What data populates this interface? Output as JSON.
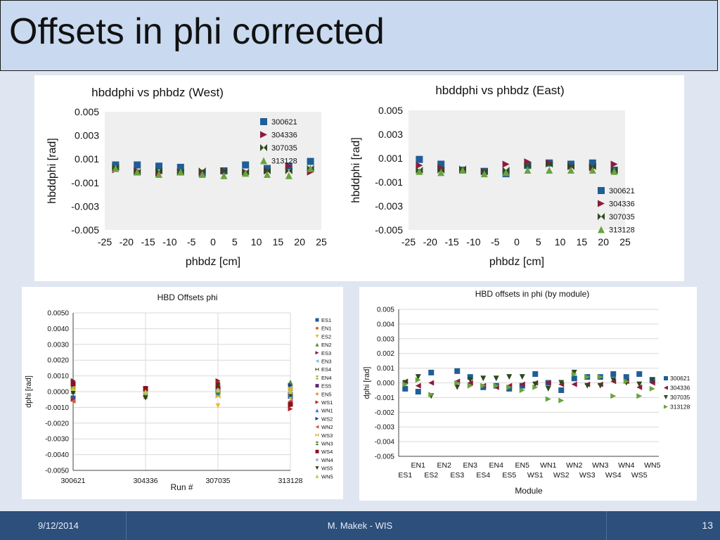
{
  "slide": {
    "title": "Offsets in phi corrected",
    "footer_date": "9/12/2014",
    "footer_author": "M. Makek - WIS",
    "page_number": "13"
  },
  "colors": {
    "300621": "#1f5e96",
    "304336": "#8e1a3c",
    "307035": "#2d4a1e",
    "313128": "#6aa33f"
  },
  "chart_data": [
    {
      "id": "west",
      "type": "scatter",
      "title": "hbddphi vs phbdz (West)",
      "xlabel": "phbdz [cm]",
      "ylabel": "hbddphi [rad]",
      "xlim": [
        -25,
        25
      ],
      "ylim": [
        -0.005,
        0.005
      ],
      "xticks": [
        "-25",
        "-20",
        "-15",
        "-10",
        "-5",
        "0",
        "5",
        "10",
        "15",
        "20",
        "25"
      ],
      "yticks": [
        "0.005",
        "0.003",
        "0.001",
        "-0.001",
        "-0.003",
        "-0.005"
      ],
      "legend_position": "top-right",
      "x": [
        -22.5,
        -17.5,
        -12.5,
        -7.5,
        -2.5,
        2.5,
        7.5,
        12.5,
        17.5,
        22.5
      ],
      "series": [
        {
          "name": "300621",
          "marker": "square",
          "values": [
            0.0005,
            0.0005,
            0.0004,
            0.0003,
            -0.0002,
            0.0,
            0.0005,
            0.0002,
            0.0004,
            0.0008
          ]
        },
        {
          "name": "304336",
          "marker": "triangle-right",
          "values": [
            0.0001,
            0.0,
            -0.0002,
            -0.0001,
            -0.0001,
            0.0,
            -0.0001,
            0.0,
            0.0004,
            -0.0001
          ]
        },
        {
          "name": "307035",
          "marker": "bowtie",
          "values": [
            0.0003,
            -0.0001,
            0.0,
            -0.0001,
            0.0,
            0.0,
            -0.0001,
            0.0,
            0.0,
            0.0002
          ]
        },
        {
          "name": "313128",
          "marker": "triangle-up",
          "values": [
            0.0002,
            -0.0001,
            -0.0003,
            -0.0001,
            -0.0003,
            -0.0004,
            -0.0002,
            -0.0003,
            -0.0004,
            0.0002
          ]
        }
      ]
    },
    {
      "id": "east",
      "type": "scatter",
      "title": "hbddphi vs phbdz (East)",
      "xlabel": "phbdz [cm]",
      "ylabel": "hbddphi [rad]",
      "xlim": [
        -25,
        25
      ],
      "ylim": [
        -0.005,
        0.005
      ],
      "xticks": [
        "-25",
        "-20",
        "-15",
        "-10",
        "-5",
        "0",
        "5",
        "10",
        "15",
        "20",
        "25"
      ],
      "yticks": [
        "0.005",
        "0.003",
        "0.001",
        "-0.001",
        "-0.003",
        "-0.005"
      ],
      "legend_position": "bottom-right",
      "x": [
        -22.5,
        -17.5,
        -12.5,
        -7.5,
        -2.5,
        2.5,
        7.5,
        12.5,
        17.5,
        22.5
      ],
      "series": [
        {
          "name": "300621",
          "marker": "square",
          "values": [
            0.0009,
            0.0005,
            0.0,
            -0.0001,
            -0.0003,
            0.0004,
            0.0006,
            0.0005,
            0.0006,
            0.0
          ]
        },
        {
          "name": "304336",
          "marker": "triangle-right",
          "values": [
            0.0004,
            0.0002,
            0.0,
            -0.0001,
            0.0005,
            0.0007,
            0.0006,
            0.0003,
            0.0002,
            0.0005
          ]
        },
        {
          "name": "307035",
          "marker": "bowtie",
          "values": [
            0.0,
            0.0,
            0.0001,
            -0.0001,
            0.0,
            0.0004,
            0.0005,
            0.0003,
            0.0003,
            0.0
          ]
        },
        {
          "name": "313128",
          "marker": "triangle-up",
          "values": [
            -0.0001,
            -0.0002,
            0.0,
            -0.0003,
            -0.0002,
            0.0,
            0.0,
            0.0,
            0.0,
            -0.0001
          ]
        }
      ]
    },
    {
      "id": "runs",
      "type": "scatter",
      "title": "HBD Offsets phi",
      "xlabel": "Run #",
      "ylabel": "dphi [rad]",
      "ylim": [
        -0.005,
        0.005
      ],
      "grid": true,
      "yticks": [
        "0.0050",
        "0.0040",
        "0.0030",
        "0.0020",
        "0.0010",
        "0.0000",
        "-0.0010",
        "-0.0020",
        "-0.0030",
        "-0.0040",
        "-0.0050"
      ],
      "categories": [
        "300621",
        "304336",
        "307035",
        "313128"
      ],
      "legend_position": "right",
      "series": [
        {
          "name": "ES1",
          "color": "#1f5e96",
          "marker": "square",
          "values": [
            -0.0004,
            0.0001,
            0.0003,
            -0.0003
          ]
        },
        {
          "name": "EN1",
          "color": "#c8641e",
          "marker": "diamond",
          "values": [
            0.0006,
            0.0001,
            0.0005,
            0.0004
          ]
        },
        {
          "name": "ES2",
          "color": "#e6c229",
          "marker": "triangle-down",
          "values": [
            0.0001,
            -0.0001,
            -0.0009,
            -0.0004
          ]
        },
        {
          "name": "EN2",
          "color": "#4c8c2b",
          "marker": "triangle-up",
          "values": [
            0.0001,
            -0.0002,
            0.0001,
            0.0006
          ]
        },
        {
          "name": "ES3",
          "color": "#7a1f3d",
          "marker": "triangle-right",
          "values": [
            0.0007,
            0.0001,
            0.0007,
            -0.0009
          ]
        },
        {
          "name": "EN3",
          "color": "#8eb7de",
          "marker": "triangle-left",
          "values": [
            0.0003,
            0.0,
            0.0002,
            0.0003
          ]
        },
        {
          "name": "ES4",
          "color": "#4a5b2c",
          "marker": "bowtie",
          "values": [
            0.0005,
            0.0,
            0.0,
            0.0002
          ]
        },
        {
          "name": "EN4",
          "color": "#a7a13a",
          "marker": "hourglass",
          "values": [
            0.0002,
            -0.0002,
            0.0004,
            0.0
          ]
        },
        {
          "name": "ES5",
          "color": "#5a2a6e",
          "marker": "square",
          "values": [
            0.0004,
            0.0,
            0.0003,
            -0.0002
          ]
        },
        {
          "name": "EN5",
          "color": "#e0a040",
          "marker": "diamond",
          "values": [
            0.0003,
            -0.0001,
            0.0002,
            0.0001
          ]
        },
        {
          "name": "WS1",
          "color": "#b22020",
          "marker": "triangle-right",
          "values": [
            -0.0005,
            -0.0002,
            0.0006,
            -0.0011
          ]
        },
        {
          "name": "WN1",
          "color": "#2a7fd4",
          "marker": "triangle-up",
          "values": [
            0.0,
            0.0,
            -0.0001,
            -0.0002
          ]
        },
        {
          "name": "WS2",
          "color": "#1d3f7a",
          "marker": "triangle-right",
          "values": [
            0.0004,
            0.0001,
            0.0001,
            0.0004
          ]
        },
        {
          "name": "WN2",
          "color": "#c95a4a",
          "marker": "triangle-left",
          "values": [
            -0.0006,
            -0.0001,
            0.0003,
            -0.0006
          ]
        },
        {
          "name": "WS3",
          "color": "#d4b03a",
          "marker": "bowtie",
          "values": [
            0.0002,
            -0.0001,
            -0.0003,
            0.0002
          ]
        },
        {
          "name": "WN3",
          "color": "#3e7a2e",
          "marker": "hourglass",
          "values": [
            0.0001,
            -0.0003,
            0.0,
            -0.0001
          ]
        },
        {
          "name": "WS4",
          "color": "#8a1020",
          "marker": "square",
          "values": [
            0.0005,
            0.0002,
            0.0002,
            -0.0008
          ]
        },
        {
          "name": "WN4",
          "color": "#8fb5e0",
          "marker": "diamond",
          "values": [
            0.0,
            -0.0001,
            0.0001,
            0.0
          ]
        },
        {
          "name": "WS5",
          "color": "#3a3a12",
          "marker": "triangle-down",
          "values": [
            -0.0001,
            -0.0004,
            0.0004,
            -0.0002
          ]
        },
        {
          "name": "WN5",
          "color": "#b8cf3a",
          "marker": "triangle-up",
          "values": [
            0.0002,
            0.0,
            0.0001,
            0.0
          ]
        }
      ]
    },
    {
      "id": "modules",
      "type": "scatter",
      "title": "HBD offsets in phi (by module)",
      "xlabel": "Module",
      "ylabel": "dphi [rad]",
      "ylim": [
        -0.005,
        0.005
      ],
      "grid": true,
      "yticks": [
        "0.005",
        "0.004",
        "0.003",
        "0.002",
        "0.001",
        "0.000",
        "-0.001",
        "-0.002",
        "-0.003",
        "-0.004",
        "-0.005"
      ],
      "categories": [
        "ES1",
        "EN1",
        "ES2",
        "EN2",
        "ES3",
        "EN3",
        "ES4",
        "EN4",
        "ES5",
        "EN5",
        "WS1",
        "WN1",
        "WS2",
        "WN2",
        "WS3",
        "WN3",
        "WS4",
        "WN4",
        "WS5",
        "WN5"
      ],
      "legend_position": "right",
      "series": [
        {
          "name": "300621",
          "marker": "square",
          "values": [
            -0.0004,
            -0.0006,
            0.0007,
            null,
            0.0008,
            0.0004,
            -0.0003,
            -0.0002,
            -0.0004,
            -0.0002,
            0.0006,
            0.0,
            -0.0005,
            0.0003,
            0.0004,
            0.0004,
            0.0006,
            0.0004,
            0.0006,
            0.0002
          ]
        },
        {
          "name": "304336",
          "marker": "triangle-left",
          "values": [
            0.0001,
            -0.0002,
            0.0,
            null,
            0.0001,
            0.0,
            -0.0002,
            -0.0003,
            -0.0002,
            -0.0001,
            0.0,
            0.0,
            -0.0001,
            -0.0001,
            -0.0001,
            -0.0001,
            0.0001,
            0.0001,
            -0.0003,
            0.0
          ]
        },
        {
          "name": "307035",
          "marker": "triangle-down",
          "values": [
            0.0,
            0.0004,
            -0.0009,
            null,
            -0.0003,
            0.0002,
            0.0003,
            0.0003,
            0.0004,
            0.0004,
            -0.0001,
            -0.0004,
            0.0,
            0.0007,
            -0.0002,
            -0.0002,
            0.0002,
            0.0,
            -0.0001,
            0.0002
          ]
        },
        {
          "name": "313128",
          "marker": "triangle-right",
          "values": [
            -0.0001,
            0.0002,
            -0.0008,
            null,
            0.0,
            -0.0002,
            -0.0002,
            -0.0002,
            -0.0003,
            -0.0005,
            -0.0003,
            -0.0011,
            -0.0012,
            0.0006,
            0.0004,
            0.0004,
            -0.0009,
            0.0001,
            -0.0009,
            -0.0004
          ]
        }
      ]
    }
  ]
}
